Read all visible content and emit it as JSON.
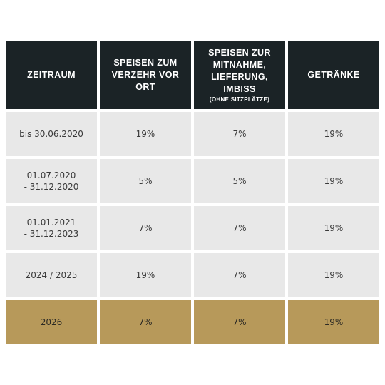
{
  "colors": {
    "header_bg": "#1b2326",
    "header_text": "#ffffff",
    "row_bg": "#e8e8e8",
    "highlight_bg": "#b7995a"
  },
  "header": {
    "col1": "ZEITRAUM",
    "col2_line1": "SPEISEN ZUM",
    "col2_line2": "VERZEHR VOR ORT",
    "col3_line1": "SPEISEN ZUR",
    "col3_line2": "MITNAHME,",
    "col3_line3": "LIEFERUNG, IMBISS",
    "col3_note": "(OHNE SITZPLÄTZE)",
    "col4": "GETRÄNKE"
  },
  "rows": [
    {
      "period_line1": "bis 30.06.2020",
      "period_line2": "",
      "dine_in": "19%",
      "takeaway": "7%",
      "drinks": "19%"
    },
    {
      "period_line1": "01.07.2020",
      "period_line2": "- 31.12.2020",
      "dine_in": "5%",
      "takeaway": "5%",
      "drinks": "19%"
    },
    {
      "period_line1": "01.01.2021",
      "period_line2": "- 31.12.2023",
      "dine_in": "7%",
      "takeaway": "7%",
      "drinks": "19%"
    },
    {
      "period_line1": "2024 / 2025",
      "period_line2": "",
      "dine_in": "19%",
      "takeaway": "7%",
      "drinks": "19%"
    },
    {
      "period_line1": "2026",
      "period_line2": "",
      "dine_in": "7%",
      "takeaway": "7%",
      "drinks": "19%"
    }
  ]
}
